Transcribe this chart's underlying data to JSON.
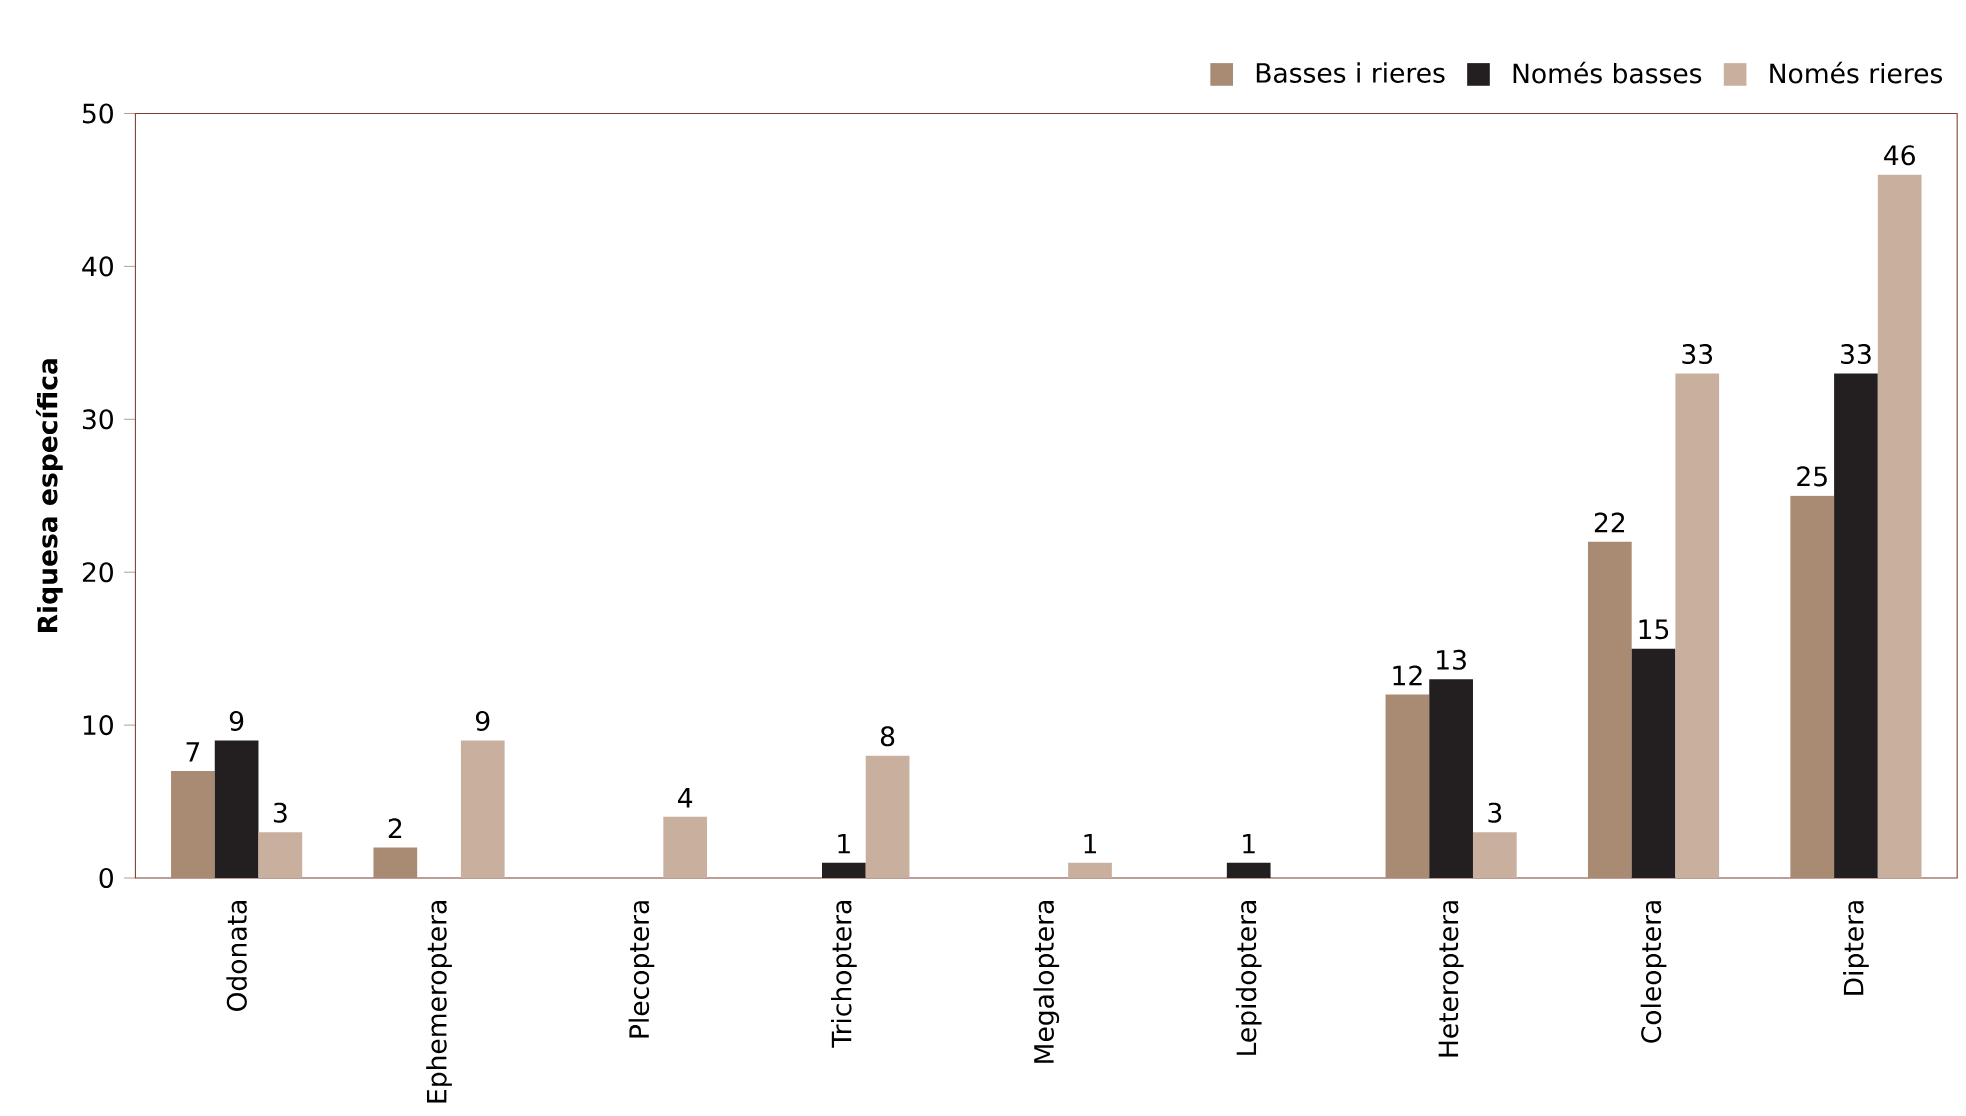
{
  "chart_data": {
    "type": "bar",
    "ylabel": "Riquesa específica",
    "categories": [
      "Odonata",
      "Ephemeroptera",
      "Plecoptera",
      "Trichoptera",
      "Megaloptera",
      "Lepidoptera",
      "Heteroptera",
      "Coleoptera",
      "Diptera"
    ],
    "series": [
      {
        "name": "Basses i rieres",
        "color": "#a98a73",
        "values": [
          7,
          2,
          0,
          0,
          0,
          0,
          12,
          22,
          25
        ],
        "value_labels": [
          "7",
          "2",
          null,
          null,
          null,
          null,
          "12",
          "22",
          "25"
        ]
      },
      {
        "name": "Només basses",
        "color": "#231f20",
        "values": [
          9,
          0,
          0,
          1,
          0,
          1,
          13,
          15,
          33
        ],
        "value_labels": [
          "9",
          null,
          null,
          "1",
          null,
          "1",
          "13",
          "15",
          "33"
        ]
      },
      {
        "name": "Només rieres",
        "color": "#c9b09e",
        "values": [
          3,
          9,
          4,
          8,
          1,
          0,
          3,
          33,
          46
        ],
        "value_labels": [
          "3",
          "9",
          "4",
          "8",
          "1",
          null,
          "3",
          "33",
          "46"
        ]
      }
    ],
    "ylim": [
      0,
      50
    ],
    "yticks": [
      0,
      10,
      20,
      30,
      40,
      50
    ],
    "grid": false,
    "legend": "top right"
  }
}
